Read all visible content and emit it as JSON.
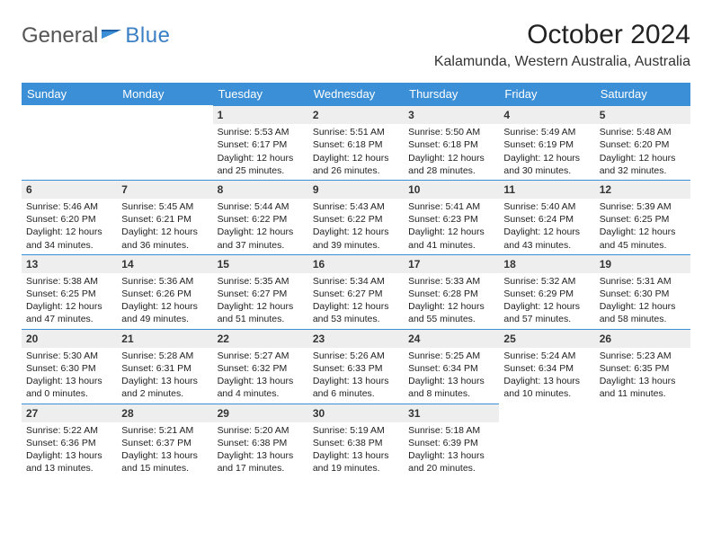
{
  "brand": {
    "a": "General",
    "b": "Blue"
  },
  "title": "October 2024",
  "location": "Kalamunda, Western Australia, Australia",
  "colors": {
    "header_bg": "#3b8fd6",
    "header_text": "#ffffff",
    "daynum_bg": "#eeeeee",
    "daynum_border": "#3b8fd6",
    "page_bg": "#ffffff",
    "brand_gray": "#555555",
    "brand_blue": "#3b7fc4"
  },
  "dayHeaders": [
    "Sunday",
    "Monday",
    "Tuesday",
    "Wednesday",
    "Thursday",
    "Friday",
    "Saturday"
  ],
  "weeks": [
    [
      null,
      null,
      {
        "n": "1",
        "sr": "Sunrise: 5:53 AM",
        "ss": "Sunset: 6:17 PM",
        "d1": "Daylight: 12 hours",
        "d2": "and 25 minutes."
      },
      {
        "n": "2",
        "sr": "Sunrise: 5:51 AM",
        "ss": "Sunset: 6:18 PM",
        "d1": "Daylight: 12 hours",
        "d2": "and 26 minutes."
      },
      {
        "n": "3",
        "sr": "Sunrise: 5:50 AM",
        "ss": "Sunset: 6:18 PM",
        "d1": "Daylight: 12 hours",
        "d2": "and 28 minutes."
      },
      {
        "n": "4",
        "sr": "Sunrise: 5:49 AM",
        "ss": "Sunset: 6:19 PM",
        "d1": "Daylight: 12 hours",
        "d2": "and 30 minutes."
      },
      {
        "n": "5",
        "sr": "Sunrise: 5:48 AM",
        "ss": "Sunset: 6:20 PM",
        "d1": "Daylight: 12 hours",
        "d2": "and 32 minutes."
      }
    ],
    [
      {
        "n": "6",
        "sr": "Sunrise: 5:46 AM",
        "ss": "Sunset: 6:20 PM",
        "d1": "Daylight: 12 hours",
        "d2": "and 34 minutes."
      },
      {
        "n": "7",
        "sr": "Sunrise: 5:45 AM",
        "ss": "Sunset: 6:21 PM",
        "d1": "Daylight: 12 hours",
        "d2": "and 36 minutes."
      },
      {
        "n": "8",
        "sr": "Sunrise: 5:44 AM",
        "ss": "Sunset: 6:22 PM",
        "d1": "Daylight: 12 hours",
        "d2": "and 37 minutes."
      },
      {
        "n": "9",
        "sr": "Sunrise: 5:43 AM",
        "ss": "Sunset: 6:22 PM",
        "d1": "Daylight: 12 hours",
        "d2": "and 39 minutes."
      },
      {
        "n": "10",
        "sr": "Sunrise: 5:41 AM",
        "ss": "Sunset: 6:23 PM",
        "d1": "Daylight: 12 hours",
        "d2": "and 41 minutes."
      },
      {
        "n": "11",
        "sr": "Sunrise: 5:40 AM",
        "ss": "Sunset: 6:24 PM",
        "d1": "Daylight: 12 hours",
        "d2": "and 43 minutes."
      },
      {
        "n": "12",
        "sr": "Sunrise: 5:39 AM",
        "ss": "Sunset: 6:25 PM",
        "d1": "Daylight: 12 hours",
        "d2": "and 45 minutes."
      }
    ],
    [
      {
        "n": "13",
        "sr": "Sunrise: 5:38 AM",
        "ss": "Sunset: 6:25 PM",
        "d1": "Daylight: 12 hours",
        "d2": "and 47 minutes."
      },
      {
        "n": "14",
        "sr": "Sunrise: 5:36 AM",
        "ss": "Sunset: 6:26 PM",
        "d1": "Daylight: 12 hours",
        "d2": "and 49 minutes."
      },
      {
        "n": "15",
        "sr": "Sunrise: 5:35 AM",
        "ss": "Sunset: 6:27 PM",
        "d1": "Daylight: 12 hours",
        "d2": "and 51 minutes."
      },
      {
        "n": "16",
        "sr": "Sunrise: 5:34 AM",
        "ss": "Sunset: 6:27 PM",
        "d1": "Daylight: 12 hours",
        "d2": "and 53 minutes."
      },
      {
        "n": "17",
        "sr": "Sunrise: 5:33 AM",
        "ss": "Sunset: 6:28 PM",
        "d1": "Daylight: 12 hours",
        "d2": "and 55 minutes."
      },
      {
        "n": "18",
        "sr": "Sunrise: 5:32 AM",
        "ss": "Sunset: 6:29 PM",
        "d1": "Daylight: 12 hours",
        "d2": "and 57 minutes."
      },
      {
        "n": "19",
        "sr": "Sunrise: 5:31 AM",
        "ss": "Sunset: 6:30 PM",
        "d1": "Daylight: 12 hours",
        "d2": "and 58 minutes."
      }
    ],
    [
      {
        "n": "20",
        "sr": "Sunrise: 5:30 AM",
        "ss": "Sunset: 6:30 PM",
        "d1": "Daylight: 13 hours",
        "d2": "and 0 minutes."
      },
      {
        "n": "21",
        "sr": "Sunrise: 5:28 AM",
        "ss": "Sunset: 6:31 PM",
        "d1": "Daylight: 13 hours",
        "d2": "and 2 minutes."
      },
      {
        "n": "22",
        "sr": "Sunrise: 5:27 AM",
        "ss": "Sunset: 6:32 PM",
        "d1": "Daylight: 13 hours",
        "d2": "and 4 minutes."
      },
      {
        "n": "23",
        "sr": "Sunrise: 5:26 AM",
        "ss": "Sunset: 6:33 PM",
        "d1": "Daylight: 13 hours",
        "d2": "and 6 minutes."
      },
      {
        "n": "24",
        "sr": "Sunrise: 5:25 AM",
        "ss": "Sunset: 6:34 PM",
        "d1": "Daylight: 13 hours",
        "d2": "and 8 minutes."
      },
      {
        "n": "25",
        "sr": "Sunrise: 5:24 AM",
        "ss": "Sunset: 6:34 PM",
        "d1": "Daylight: 13 hours",
        "d2": "and 10 minutes."
      },
      {
        "n": "26",
        "sr": "Sunrise: 5:23 AM",
        "ss": "Sunset: 6:35 PM",
        "d1": "Daylight: 13 hours",
        "d2": "and 11 minutes."
      }
    ],
    [
      {
        "n": "27",
        "sr": "Sunrise: 5:22 AM",
        "ss": "Sunset: 6:36 PM",
        "d1": "Daylight: 13 hours",
        "d2": "and 13 minutes."
      },
      {
        "n": "28",
        "sr": "Sunrise: 5:21 AM",
        "ss": "Sunset: 6:37 PM",
        "d1": "Daylight: 13 hours",
        "d2": "and 15 minutes."
      },
      {
        "n": "29",
        "sr": "Sunrise: 5:20 AM",
        "ss": "Sunset: 6:38 PM",
        "d1": "Daylight: 13 hours",
        "d2": "and 17 minutes."
      },
      {
        "n": "30",
        "sr": "Sunrise: 5:19 AM",
        "ss": "Sunset: 6:38 PM",
        "d1": "Daylight: 13 hours",
        "d2": "and 19 minutes."
      },
      {
        "n": "31",
        "sr": "Sunrise: 5:18 AM",
        "ss": "Sunset: 6:39 PM",
        "d1": "Daylight: 13 hours",
        "d2": "and 20 minutes."
      },
      null,
      null
    ]
  ]
}
